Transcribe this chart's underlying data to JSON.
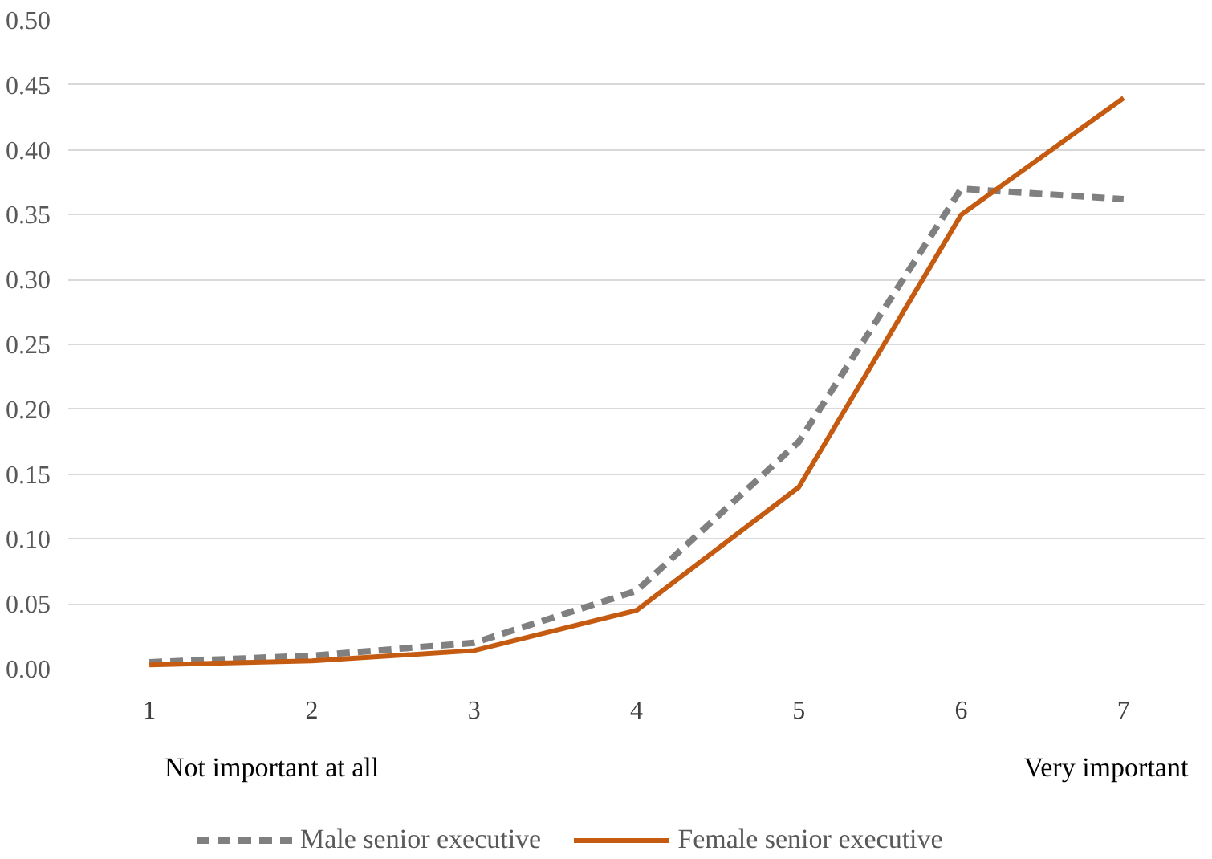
{
  "chart_data": {
    "type": "line",
    "categories": [
      "1",
      "2",
      "3",
      "4",
      "5",
      "6",
      "7"
    ],
    "series": [
      {
        "name": "Male senior executive",
        "color": "#808080",
        "line_style": "dashed",
        "values": [
          0.005,
          0.01,
          0.02,
          0.06,
          0.175,
          0.37,
          0.362
        ]
      },
      {
        "name": "Female senior executive",
        "color": "#c55a11",
        "line_style": "solid",
        "values": [
          0.003,
          0.006,
          0.014,
          0.045,
          0.14,
          0.35,
          0.44
        ]
      }
    ],
    "ylim": [
      0,
      0.5
    ],
    "yticks": [
      {
        "value": 0,
        "label": "0.00"
      },
      {
        "value": 0.05,
        "label": "0.05"
      },
      {
        "value": 0.1,
        "label": "0.10"
      },
      {
        "value": 0.15,
        "label": "0.15"
      },
      {
        "value": 0.2,
        "label": "0.20"
      },
      {
        "value": 0.25,
        "label": "0.25"
      },
      {
        "value": 0.3,
        "label": "0.30"
      },
      {
        "value": 0.35,
        "label": "0.35"
      },
      {
        "value": 0.4,
        "label": "0.40"
      },
      {
        "value": 0.45,
        "label": "0.45"
      },
      {
        "value": 0.5,
        "label": "0.50"
      }
    ],
    "annotations": [
      "Not important at all",
      "Very important"
    ],
    "grid": "y",
    "legend": "bottom",
    "marker": "none"
  }
}
